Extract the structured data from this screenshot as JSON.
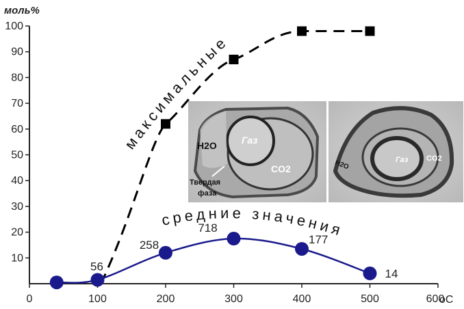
{
  "chart_data": {
    "type": "line",
    "y_axis_label": "моль%",
    "x_axis_label": "°С",
    "xlim": [
      0,
      600
    ],
    "ylim": [
      0,
      100
    ],
    "x_ticks": [
      "0",
      "100",
      "200",
      "300",
      "400",
      "500",
      "600"
    ],
    "y_ticks": [
      "10",
      "20",
      "30",
      "40",
      "50",
      "60",
      "70",
      "80",
      "90",
      "100"
    ],
    "x_unit_label": "оС",
    "series": [
      {
        "name": "максимальные",
        "style": "dashed",
        "marker": "square",
        "color": "#000000",
        "x": [
          200,
          300,
          400,
          500
        ],
        "y": [
          62,
          87,
          98,
          98
        ]
      },
      {
        "name": "средние значения",
        "style": "solid",
        "marker": "circle",
        "color": "#1a1a8c",
        "x": [
          40,
          100,
          200,
          300,
          400,
          500
        ],
        "y": [
          0.5,
          1.5,
          12,
          17.5,
          13.5,
          4
        ],
        "point_labels": [
          "",
          "56",
          "258",
          "718",
          "177",
          "14"
        ]
      }
    ]
  },
  "photos": {
    "left": {
      "h2o": "H2O",
      "gas": "Газ",
      "co2": "CO2",
      "solid_line1": "Твердая",
      "solid_line2": "фаза"
    },
    "right": {
      "h2o": "H2O",
      "gas": "Газ",
      "co2": "CO2"
    }
  },
  "colors": {
    "avg_series": "#1a1a8c",
    "max_series": "#000000",
    "photo_bg": "#c9c9c9"
  }
}
